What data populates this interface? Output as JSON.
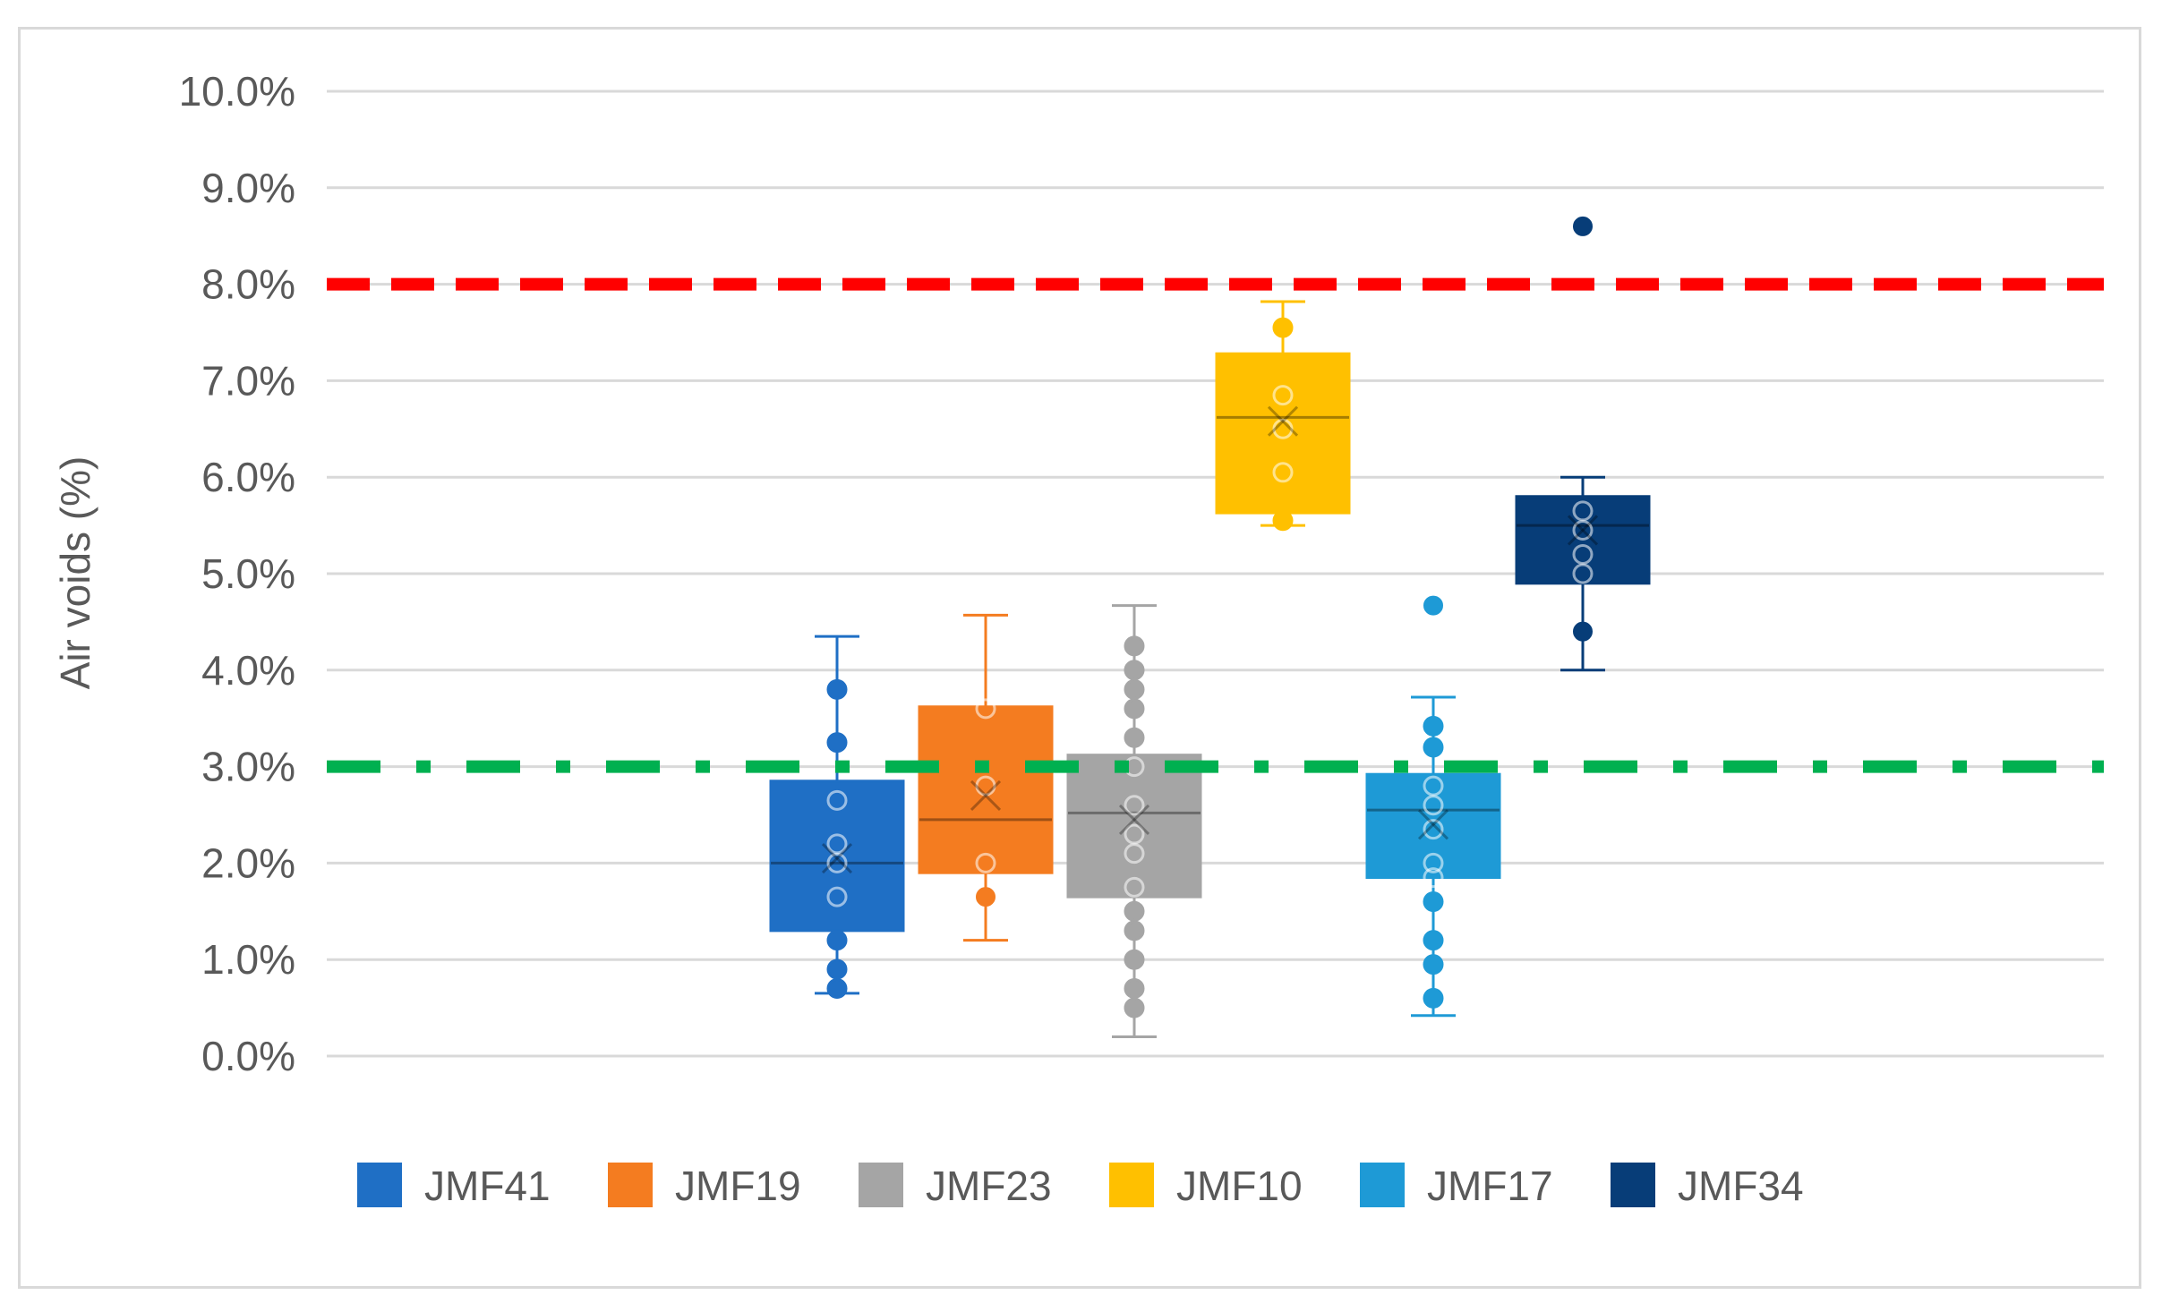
{
  "chart_data": {
    "type": "box",
    "ylabel": "Air voids (%)",
    "ylim": [
      0,
      10
    ],
    "y_ticks": [
      "0.0%",
      "1.0%",
      "2.0%",
      "3.0%",
      "4.0%",
      "5.0%",
      "6.0%",
      "7.0%",
      "8.0%",
      "9.0%",
      "10.0%"
    ],
    "grid": true,
    "legend_position": "bottom",
    "reference_lines": [
      {
        "value": 8.0,
        "color": "#ff0000",
        "style": "dashed"
      },
      {
        "value": 3.0,
        "color": "#00b050",
        "style": "dash-dot"
      }
    ],
    "series": [
      {
        "name": "JMF41",
        "color": "#1f6fc5",
        "whisker_low": 0.65,
        "q1": 1.3,
        "median": 2.0,
        "q3": 2.85,
        "whisker_high": 4.35,
        "mean": 2.05,
        "points": [
          0.7,
          0.9,
          1.2,
          1.65,
          2.0,
          2.2,
          2.65,
          3.25,
          3.8
        ],
        "outliers": []
      },
      {
        "name": "JMF19",
        "color": "#f47c20",
        "whisker_low": 1.2,
        "q1": 1.9,
        "median": 2.45,
        "q3": 3.62,
        "whisker_high": 4.57,
        "mean": 2.7,
        "points": [
          2.0,
          2.8,
          3.6
        ],
        "outliers": [
          1.65
        ]
      },
      {
        "name": "JMF23",
        "color": "#a5a5a5",
        "whisker_low": 0.2,
        "q1": 1.65,
        "median": 2.52,
        "q3": 3.12,
        "whisker_high": 4.67,
        "mean": 2.45,
        "points": [
          0.5,
          0.7,
          1.0,
          1.3,
          1.5,
          1.75,
          2.1,
          2.3,
          2.6,
          3.0,
          3.3,
          3.6,
          3.8,
          4.0,
          4.25
        ],
        "outliers": []
      },
      {
        "name": "JMF10",
        "color": "#ffc000",
        "whisker_low": 5.5,
        "q1": 5.63,
        "median": 6.62,
        "q3": 7.28,
        "whisker_high": 7.82,
        "mean": 6.58,
        "points": [
          5.55,
          6.05,
          6.5,
          6.85,
          7.55
        ],
        "outliers": []
      },
      {
        "name": "JMF17",
        "color": "#1e9ad6",
        "whisker_low": 0.42,
        "q1": 1.85,
        "median": 2.55,
        "q3": 2.92,
        "whisker_high": 3.72,
        "mean": 2.4,
        "points": [
          0.6,
          0.95,
          1.2,
          1.6,
          1.85,
          2.0,
          2.35,
          2.6,
          2.8,
          3.2,
          3.42
        ],
        "outliers": [
          4.67
        ]
      },
      {
        "name": "JMF34",
        "color": "#073d78",
        "whisker_low": 4.0,
        "q1": 4.9,
        "median": 5.5,
        "q3": 5.8,
        "whisker_high": 6.0,
        "mean": 5.45,
        "points": [
          5.0,
          5.2,
          5.45,
          5.65
        ],
        "outliers": [
          4.4,
          8.6
        ]
      }
    ]
  }
}
